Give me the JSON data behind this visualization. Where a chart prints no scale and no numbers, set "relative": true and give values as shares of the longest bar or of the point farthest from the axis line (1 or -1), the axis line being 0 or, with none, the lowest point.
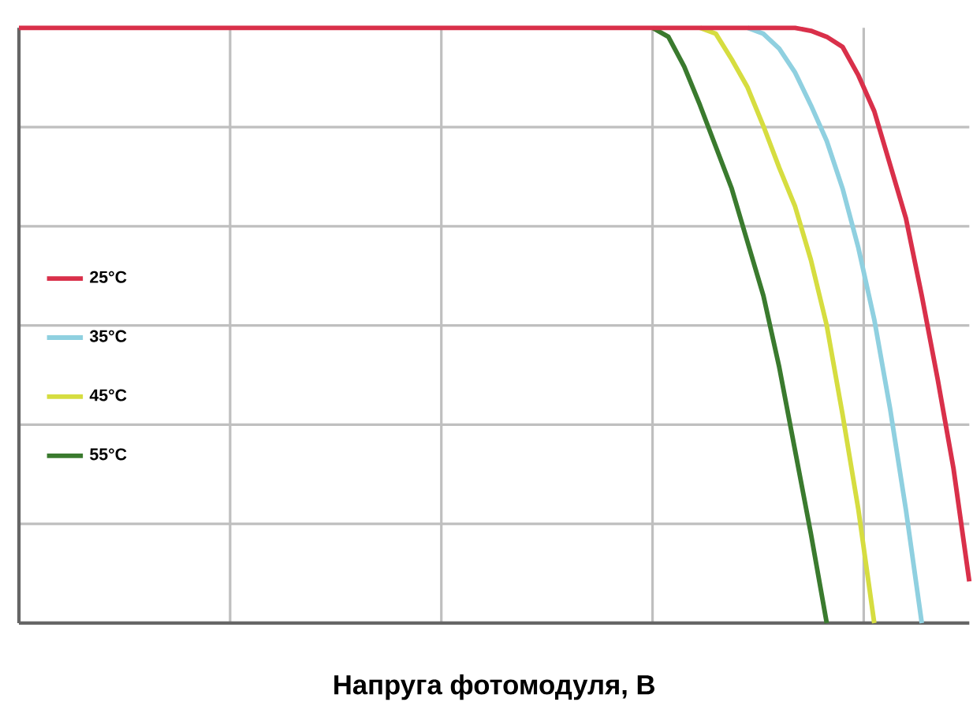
{
  "chart_data": {
    "type": "line",
    "relative": true,
    "xlabel": "Напруга фотомодуля, В",
    "grid": true,
    "legend": "left",
    "marker": "none",
    "line_style": "solid",
    "categories": [
      null,
      null,
      null,
      null,
      null,
      null,
      null,
      null,
      null,
      null,
      null,
      null,
      null,
      null,
      null,
      null,
      null,
      null,
      null,
      null,
      null,
      null,
      null,
      null,
      null,
      null,
      null,
      null,
      null,
      null,
      null,
      null,
      null,
      null,
      null,
      null,
      null,
      null,
      null,
      null,
      null,
      null,
      null,
      null,
      null,
      null,
      null,
      null,
      null,
      null,
      null,
      null,
      null,
      null,
      null,
      null,
      null,
      null,
      null,
      null,
      null
    ],
    "series": [
      {
        "name": "25°C",
        "color": "#d9304a",
        "values": [
          1,
          1,
          1,
          1,
          1,
          1,
          1,
          1,
          1,
          1,
          1,
          1,
          1,
          1,
          1,
          1,
          1,
          1,
          1,
          1,
          1,
          1,
          1,
          1,
          1,
          1,
          1,
          1,
          1,
          1,
          1,
          1,
          1,
          1,
          1,
          1,
          1,
          1,
          1,
          1,
          1,
          1,
          1,
          1,
          1,
          1,
          1,
          1,
          1,
          1,
          0.995,
          0.985,
          0.968,
          0.92,
          0.86,
          0.77,
          0.68,
          0.55,
          0.41,
          0.26,
          0.07
        ]
      },
      {
        "name": "35°C",
        "color": "#8fd0e0",
        "values": [
          null,
          null,
          null,
          null,
          null,
          null,
          null,
          null,
          null,
          null,
          null,
          null,
          null,
          null,
          null,
          null,
          null,
          null,
          null,
          null,
          null,
          null,
          null,
          null,
          null,
          null,
          null,
          null,
          null,
          null,
          null,
          null,
          null,
          null,
          null,
          null,
          null,
          null,
          null,
          null,
          null,
          null,
          null,
          null,
          null,
          null,
          1,
          0.99,
          0.965,
          0.925,
          0.87,
          0.81,
          0.73,
          0.63,
          0.51,
          0.36,
          0.19,
          0,
          null,
          null,
          null
        ]
      },
      {
        "name": "45°C",
        "color": "#d6dd40",
        "values": [
          null,
          null,
          null,
          null,
          null,
          null,
          null,
          null,
          null,
          null,
          null,
          null,
          null,
          null,
          null,
          null,
          null,
          null,
          null,
          null,
          null,
          null,
          null,
          null,
          null,
          null,
          null,
          null,
          null,
          null,
          null,
          null,
          null,
          null,
          null,
          null,
          null,
          null,
          null,
          null,
          null,
          null,
          null,
          1,
          0.99,
          0.947,
          0.9,
          0.835,
          0.765,
          0.7,
          0.61,
          0.5,
          0.35,
          0.19,
          0,
          null,
          null,
          null,
          null,
          null,
          null
        ]
      },
      {
        "name": "55°C",
        "color": "#3a7a2e",
        "values": [
          null,
          null,
          null,
          null,
          null,
          null,
          null,
          null,
          null,
          null,
          null,
          null,
          null,
          null,
          null,
          null,
          null,
          null,
          null,
          null,
          null,
          null,
          null,
          null,
          null,
          null,
          null,
          null,
          null,
          null,
          null,
          null,
          null,
          null,
          null,
          null,
          null,
          null,
          null,
          null,
          1,
          0.985,
          0.935,
          0.87,
          0.8,
          0.73,
          0.64,
          0.55,
          0.43,
          0.29,
          0.15,
          0,
          null,
          null,
          null,
          null,
          null,
          null,
          null,
          null,
          null
        ]
      }
    ]
  }
}
